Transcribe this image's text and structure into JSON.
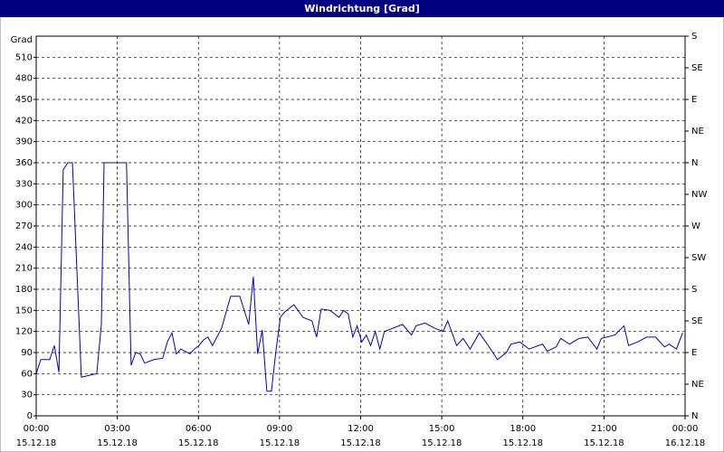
{
  "window_title": "Windrichtung [Grad]",
  "chart_data": {
    "type": "line",
    "y_label": "Grad",
    "x": [
      0,
      0.17,
      0.5,
      0.67,
      0.84,
      1.0,
      1.17,
      1.34,
      1.67,
      2.01,
      2.24,
      2.41,
      2.51,
      3.34,
      3.51,
      3.68,
      3.85,
      4.01,
      4.35,
      4.68,
      4.85,
      5.02,
      5.18,
      5.35,
      5.69,
      5.85,
      6.02,
      6.19,
      6.35,
      6.52,
      6.86,
      7.19,
      7.53,
      7.86,
      8.03,
      8.19,
      8.36,
      8.53,
      8.7,
      8.86,
      9.03,
      9.2,
      9.53,
      9.87,
      10.2,
      10.37,
      10.54,
      10.87,
      11.2,
      11.37,
      11.54,
      11.71,
      11.87,
      12.04,
      12.21,
      12.37,
      12.54,
      12.71,
      12.88,
      13.21,
      13.55,
      13.88,
      14.05,
      14.38,
      14.72,
      15.05,
      15.22,
      15.55,
      15.79,
      16.05,
      16.39,
      16.72,
      17.06,
      17.39,
      17.56,
      17.89,
      18.23,
      18.73,
      18.9,
      19.23,
      19.4,
      19.73,
      20.07,
      20.4,
      20.74,
      20.9,
      21.4,
      21.74,
      21.91,
      22.24,
      22.58,
      22.91,
      23.24,
      23.41,
      23.68,
      23.91
    ],
    "series": [
      {
        "name": "Windrichtung",
        "color": "#0000c0",
        "values": [
          60,
          80,
          80,
          100,
          62,
          350,
          360,
          360,
          55,
          58,
          60,
          130,
          360,
          360,
          72,
          90,
          88,
          75,
          80,
          82,
          105,
          118,
          88,
          95,
          88,
          95,
          100,
          108,
          112,
          100,
          125,
          170,
          170,
          130,
          198,
          88,
          122,
          35,
          35,
          90,
          140,
          148,
          158,
          140,
          135,
          112,
          152,
          150,
          140,
          150,
          145,
          112,
          128,
          105,
          115,
          100,
          120,
          95,
          120,
          125,
          130,
          115,
          128,
          132,
          125,
          120,
          135,
          100,
          110,
          95,
          118,
          100,
          80,
          90,
          102,
          105,
          95,
          102,
          92,
          98,
          110,
          102,
          110,
          112,
          95,
          110,
          115,
          128,
          100,
          105,
          112,
          112,
          98,
          102,
          95,
          118
        ]
      }
    ],
    "xlim": [
      0,
      24
    ],
    "xticks": [
      {
        "value": 0,
        "label": "00:00"
      },
      {
        "value": 3,
        "label": "03:00"
      },
      {
        "value": 6,
        "label": "06:00"
      },
      {
        "value": 9,
        "label": "09:00"
      },
      {
        "value": 12,
        "label": "12:00"
      },
      {
        "value": 15,
        "label": "15:00"
      },
      {
        "value": 18,
        "label": "18:00"
      },
      {
        "value": 21,
        "label": "21:00"
      },
      {
        "value": 24,
        "label": "00:00"
      }
    ],
    "xtick_dates": [
      "15.12.18",
      "15.12.18",
      "15.12.18",
      "15.12.18",
      "15.12.18",
      "15.12.18",
      "15.12.18",
      "15.12.18",
      "16.12.18"
    ],
    "ylim": [
      0,
      540
    ],
    "yticks": [
      0,
      30,
      60,
      90,
      120,
      150,
      180,
      210,
      240,
      270,
      300,
      330,
      360,
      390,
      420,
      450,
      480,
      510
    ],
    "y2lim": [
      0,
      540
    ],
    "y2ticks": [
      {
        "value": 0,
        "label": "N"
      },
      {
        "value": 45,
        "label": "NE"
      },
      {
        "value": 90,
        "label": "E"
      },
      {
        "value": 135,
        "label": "SE"
      },
      {
        "value": 180,
        "label": "S"
      },
      {
        "value": 225,
        "label": "SW"
      },
      {
        "value": 270,
        "label": "W"
      },
      {
        "value": 315,
        "label": "NW"
      },
      {
        "value": 360,
        "label": "N"
      },
      {
        "value": 405,
        "label": "NE"
      },
      {
        "value": 450,
        "label": "E"
      },
      {
        "value": 495,
        "label": "SE"
      },
      {
        "value": 540,
        "label": "S"
      }
    ],
    "grid": true
  }
}
